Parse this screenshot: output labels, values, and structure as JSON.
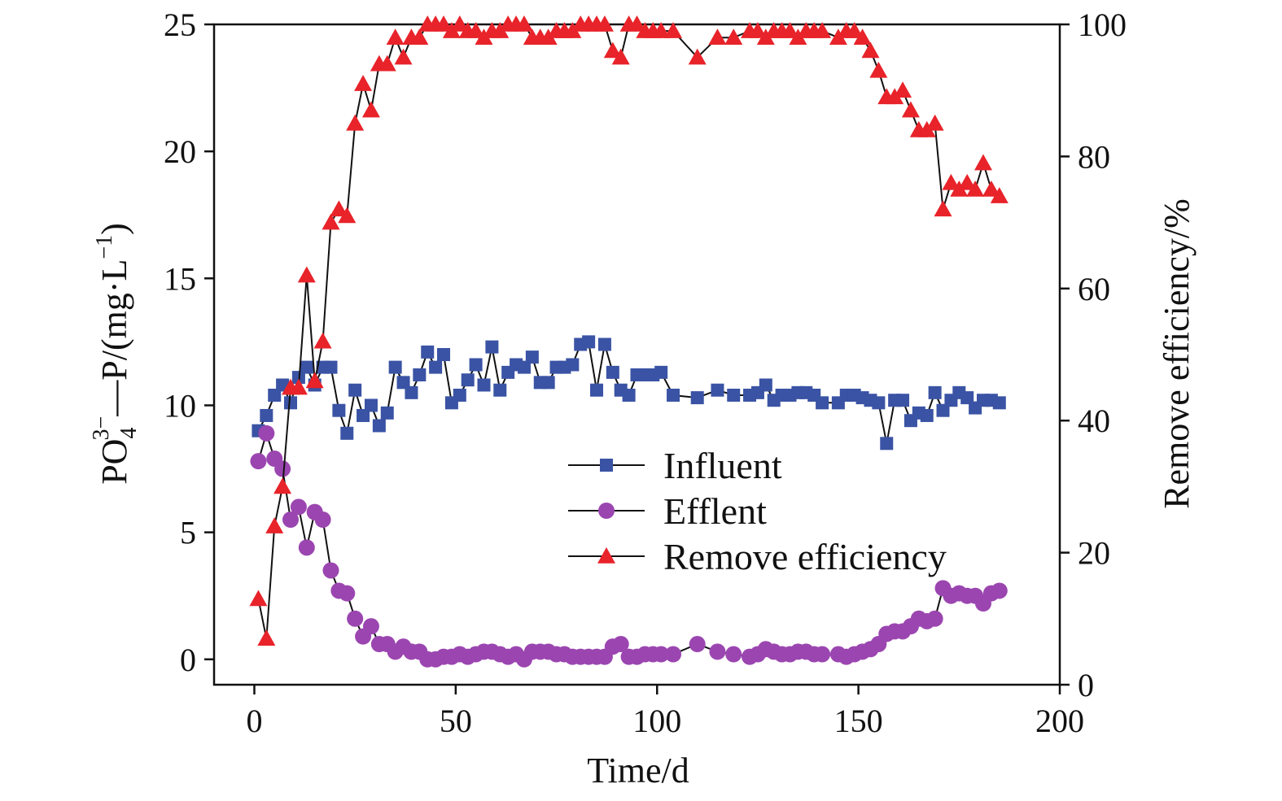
{
  "chart_data": {
    "type": "line",
    "xlabel": "Time/d",
    "ylabel_left": {
      "prefix": "PO",
      "sub": "4",
      "sup": "3−",
      "suffix": "—P/(mg·L",
      "sup2": "−1",
      "close": ")"
    },
    "ylabel_right": "Remove efficiency/%",
    "xlim": [
      -10,
      200
    ],
    "ylim_left": [
      -1,
      25
    ],
    "ylim_right": [
      0,
      100
    ],
    "xticks": [
      0,
      50,
      100,
      150,
      200
    ],
    "yticks_left": [
      0,
      5,
      10,
      15,
      20,
      25
    ],
    "yticks_right": [
      0,
      20,
      40,
      60,
      80,
      100
    ],
    "grid": false,
    "legend_position": "center-right",
    "series": [
      {
        "name": "Influent",
        "axis": "left",
        "marker": "square",
        "color": "#3a53a4",
        "x": [
          1,
          3,
          5,
          7,
          9,
          11,
          13,
          15,
          17,
          19,
          21,
          23,
          25,
          27,
          29,
          31,
          33,
          35,
          37,
          39,
          41,
          43,
          45,
          47,
          49,
          51,
          53,
          55,
          57,
          59,
          61,
          63,
          65,
          67,
          69,
          71,
          73,
          75,
          77,
          79,
          81,
          83,
          85,
          87,
          89,
          91,
          93,
          95,
          97,
          99,
          101,
          104,
          110,
          115,
          119,
          123,
          125,
          127,
          129,
          131,
          133,
          135,
          137,
          139,
          141,
          145,
          147,
          149,
          151,
          153,
          155,
          157,
          159,
          161,
          163,
          165,
          167,
          169,
          171,
          173,
          175,
          177,
          179,
          181,
          183,
          185
        ],
        "y": [
          9.0,
          9.6,
          10.4,
          10.8,
          10.1,
          11.1,
          11.5,
          10.8,
          11.5,
          11.5,
          9.8,
          8.9,
          10.6,
          9.6,
          10.0,
          9.2,
          9.7,
          11.5,
          10.9,
          10.5,
          11.2,
          12.1,
          11.5,
          12.0,
          10.1,
          10.4,
          11.0,
          11.6,
          10.8,
          12.3,
          10.6,
          11.3,
          11.6,
          11.5,
          11.9,
          10.9,
          10.9,
          11.5,
          11.5,
          11.6,
          12.4,
          12.5,
          10.6,
          12.4,
          11.3,
          10.6,
          10.4,
          11.2,
          11.2,
          11.2,
          11.3,
          10.4,
          10.3,
          10.6,
          10.4,
          10.4,
          10.5,
          10.8,
          10.2,
          10.4,
          10.4,
          10.5,
          10.5,
          10.4,
          10.1,
          10.1,
          10.4,
          10.4,
          10.3,
          10.2,
          10.1,
          8.5,
          10.2,
          10.2,
          9.4,
          9.7,
          9.6,
          10.5,
          9.8,
          10.2,
          10.5,
          10.3,
          9.9,
          10.2,
          10.2,
          10.1
        ]
      },
      {
        "name": "Efflent",
        "axis": "left",
        "marker": "circle",
        "color": "#9b46b0",
        "x": [
          1,
          3,
          5,
          7,
          9,
          11,
          13,
          15,
          17,
          19,
          21,
          23,
          25,
          27,
          29,
          31,
          33,
          35,
          37,
          39,
          41,
          43,
          45,
          47,
          49,
          51,
          53,
          55,
          57,
          59,
          61,
          63,
          65,
          67,
          69,
          71,
          73,
          75,
          77,
          79,
          81,
          83,
          85,
          87,
          89,
          91,
          93,
          95,
          97,
          99,
          101,
          104,
          110,
          115,
          119,
          123,
          125,
          127,
          129,
          131,
          133,
          135,
          137,
          139,
          141,
          145,
          147,
          149,
          151,
          153,
          155,
          157,
          159,
          161,
          163,
          165,
          167,
          169,
          171,
          173,
          175,
          177,
          179,
          181,
          183,
          185
        ],
        "y": [
          7.8,
          8.9,
          7.9,
          7.5,
          5.5,
          6.0,
          4.4,
          5.8,
          5.5,
          3.5,
          2.7,
          2.6,
          1.6,
          0.9,
          1.3,
          0.6,
          0.6,
          0.3,
          0.5,
          0.3,
          0.3,
          0.0,
          0.0,
          0.1,
          0.1,
          0.2,
          0.1,
          0.2,
          0.3,
          0.3,
          0.2,
          0.1,
          0.2,
          0.0,
          0.3,
          0.3,
          0.3,
          0.2,
          0.2,
          0.1,
          0.1,
          0.1,
          0.1,
          0.1,
          0.5,
          0.6,
          0.1,
          0.1,
          0.2,
          0.2,
          0.2,
          0.2,
          0.6,
          0.3,
          0.2,
          0.1,
          0.2,
          0.4,
          0.3,
          0.2,
          0.2,
          0.3,
          0.3,
          0.2,
          0.2,
          0.2,
          0.1,
          0.2,
          0.3,
          0.4,
          0.6,
          1.0,
          1.1,
          1.1,
          1.3,
          1.6,
          1.5,
          1.6,
          2.8,
          2.5,
          2.6,
          2.5,
          2.5,
          2.2,
          2.6,
          2.7
        ]
      },
      {
        "name": "Remove efficiency",
        "axis": "right",
        "marker": "triangle",
        "color": "#e8232a",
        "x": [
          1,
          3,
          5,
          7,
          9,
          11,
          13,
          15,
          17,
          19,
          21,
          23,
          25,
          27,
          29,
          31,
          33,
          35,
          37,
          39,
          41,
          43,
          45,
          47,
          49,
          51,
          53,
          55,
          57,
          59,
          61,
          63,
          65,
          67,
          69,
          71,
          73,
          75,
          77,
          79,
          81,
          83,
          85,
          87,
          89,
          91,
          93,
          95,
          97,
          99,
          101,
          104,
          110,
          115,
          119,
          123,
          125,
          127,
          129,
          131,
          133,
          135,
          137,
          139,
          141,
          145,
          147,
          149,
          151,
          153,
          155,
          157,
          159,
          161,
          163,
          165,
          167,
          169,
          171,
          173,
          175,
          177,
          179,
          181,
          183,
          185
        ],
        "y": [
          13,
          7,
          24,
          30,
          45,
          45,
          62,
          46,
          52,
          70,
          72,
          71,
          85,
          91,
          87,
          94,
          94,
          98,
          95,
          98,
          98,
          100,
          100,
          100,
          99,
          100,
          99,
          99,
          98,
          99,
          99,
          100,
          100,
          100,
          98,
          98,
          98,
          99,
          99,
          99,
          100,
          100,
          100,
          100,
          96,
          95,
          100,
          100,
          99,
          99,
          99,
          99,
          95,
          98,
          98,
          99,
          99,
          98,
          99,
          99,
          99,
          98,
          99,
          99,
          99,
          98,
          99,
          99,
          98,
          96,
          93,
          89,
          89,
          90,
          87,
          84,
          84,
          85,
          72,
          76,
          75,
          76,
          75,
          79,
          75,
          74
        ]
      }
    ]
  }
}
